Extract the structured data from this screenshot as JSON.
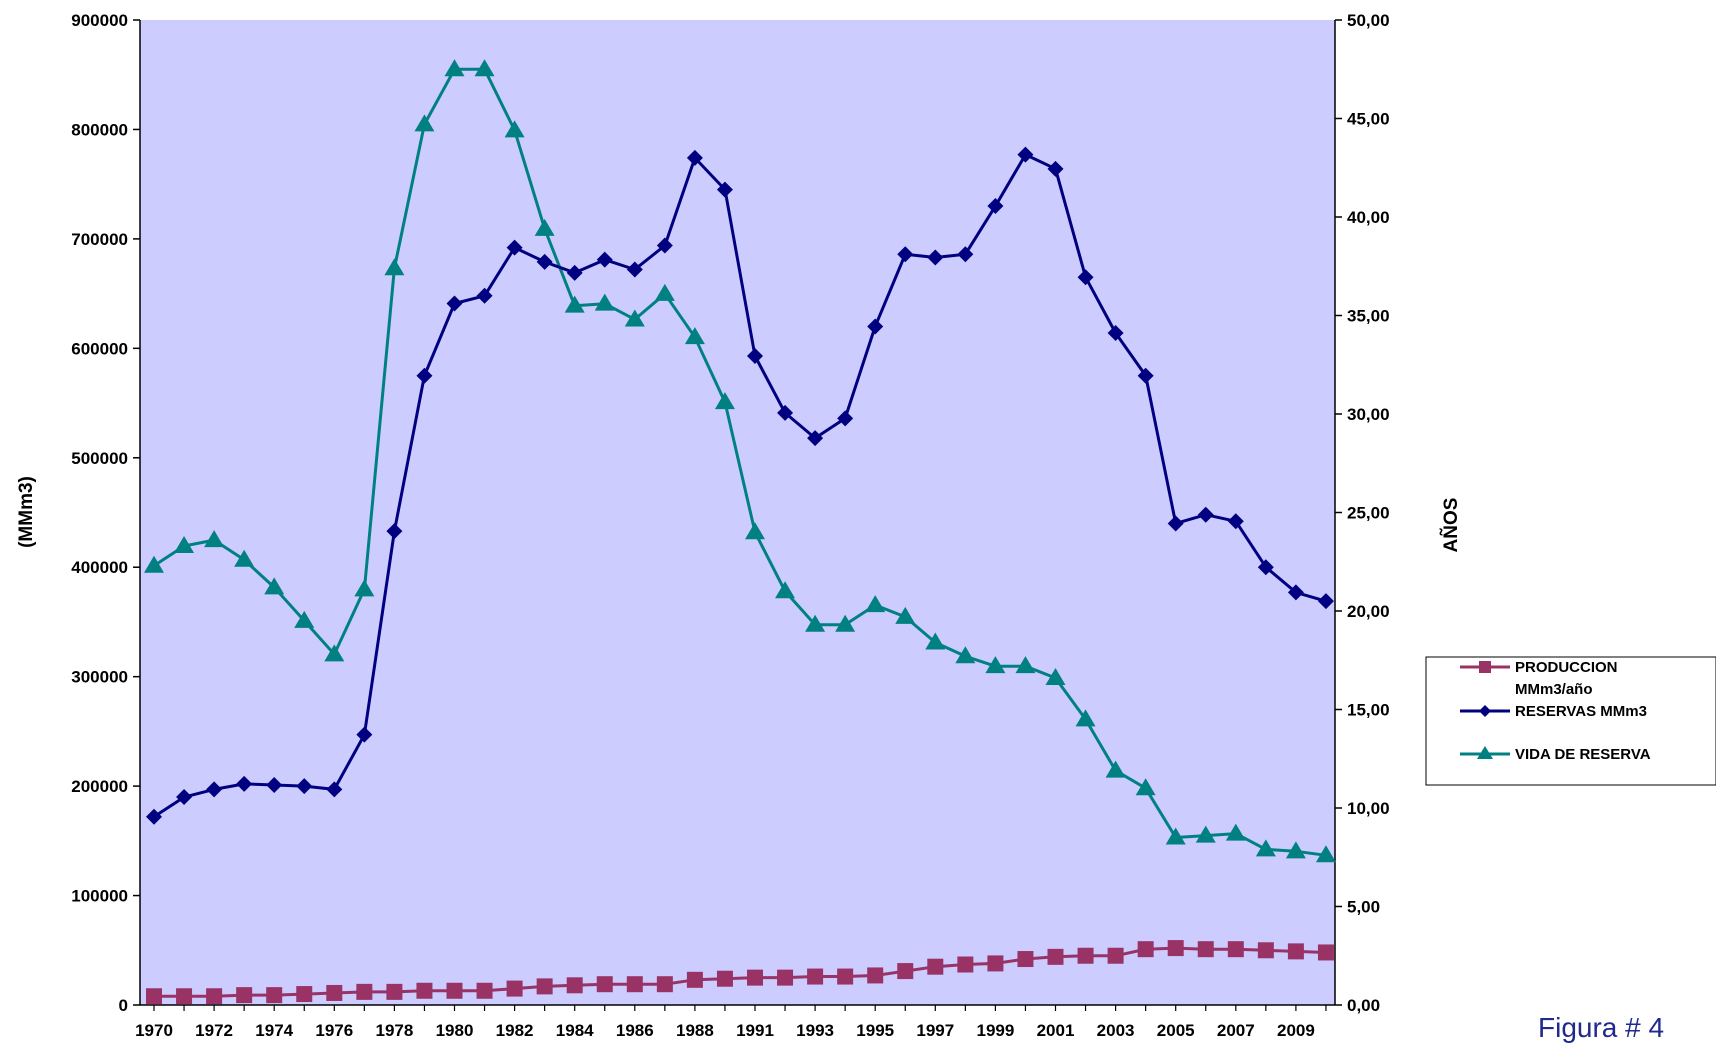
{
  "chart_data": {
    "type": "line",
    "title": "",
    "ylabel_left": "(MMm3)",
    "ylabel_right": "AÑOS",
    "ylim_left": [
      0,
      900000
    ],
    "ylim_right": [
      0,
      50
    ],
    "left_ticks": [
      "0",
      "100000",
      "200000",
      "300000",
      "400000",
      "500000",
      "600000",
      "700000",
      "800000",
      "900000"
    ],
    "right_ticks": [
      "0,00",
      "5,00",
      "10,00",
      "15,00",
      "20,00",
      "25,00",
      "30,00",
      "35,00",
      "40,00",
      "45,00",
      "50,00"
    ],
    "x_tick_labels": [
      "1970",
      "1972",
      "1974",
      "1976",
      "1978",
      "1980",
      "1982",
      "1984",
      "1986",
      "1988",
      "1991",
      "1993",
      "1995",
      "1997",
      "1999",
      "2001",
      "2003",
      "2005",
      "2007",
      "2009"
    ],
    "x": [
      1970,
      1971,
      1972,
      1973,
      1974,
      1975,
      1976,
      1977,
      1978,
      1979,
      1980,
      1981,
      1982,
      1983,
      1984,
      1985,
      1986,
      1987,
      1988,
      1989,
      1990,
      1991,
      1992,
      1993,
      1994,
      1995,
      1996,
      1997,
      1998,
      1999,
      2000,
      2001,
      2002,
      2003,
      2004,
      2005,
      2006,
      2007,
      2008,
      2009
    ],
    "plot_bg": "#ccccff",
    "grid": false,
    "legend_position": "right",
    "series": [
      {
        "name": "PRODUCCION MMm3/año",
        "axis": "left",
        "marker": "square",
        "color": "#993366",
        "values": [
          8000,
          8000,
          8000,
          9000,
          9000,
          10000,
          11000,
          12000,
          12000,
          13000,
          13000,
          13000,
          15000,
          17000,
          18000,
          19000,
          19000,
          19000,
          23000,
          24000,
          25000,
          25000,
          26000,
          26000,
          27000,
          31000,
          35000,
          37000,
          38000,
          42000,
          44000,
          45000,
          45000,
          51000,
          52000,
          51000,
          51000,
          50000,
          49000,
          48000
        ]
      },
      {
        "name": "RESERVAS MMm3",
        "axis": "left",
        "marker": "diamond",
        "color": "#000080",
        "values": [
          172000,
          190000,
          197000,
          202000,
          201000,
          200000,
          197000,
          247000,
          433000,
          575000,
          641000,
          648000,
          692000,
          679000,
          669000,
          681000,
          672000,
          694000,
          774000,
          745000,
          593000,
          541000,
          518000,
          536000,
          620000,
          686000,
          683000,
          686000,
          730000,
          777000,
          764000,
          665000,
          614000,
          575000,
          440000,
          448000,
          442000,
          400000,
          377000,
          369000
        ]
      },
      {
        "name": "VIDA DE RESERVA",
        "axis": "right",
        "marker": "triangle",
        "color": "#008080",
        "values": [
          22.3,
          23.3,
          23.6,
          22.6,
          21.2,
          19.5,
          17.8,
          21.1,
          37.4,
          44.7,
          47.5,
          47.5,
          44.4,
          39.4,
          35.5,
          35.6,
          34.8,
          36.1,
          33.9,
          30.6,
          24.0,
          21.0,
          19.3,
          19.3,
          20.3,
          19.7,
          18.4,
          17.7,
          17.2,
          17.2,
          16.6,
          14.5,
          11.9,
          11.0,
          8.5,
          8.6,
          8.7,
          7.9,
          7.8,
          7.6
        ]
      }
    ]
  },
  "legend": {
    "line1": [
      "PRODUCCION",
      "MMm3/año"
    ],
    "line2": "RESERVAS MMm3",
    "line3": "VIDA DE RESERVA"
  },
  "caption": "Figura # 4"
}
